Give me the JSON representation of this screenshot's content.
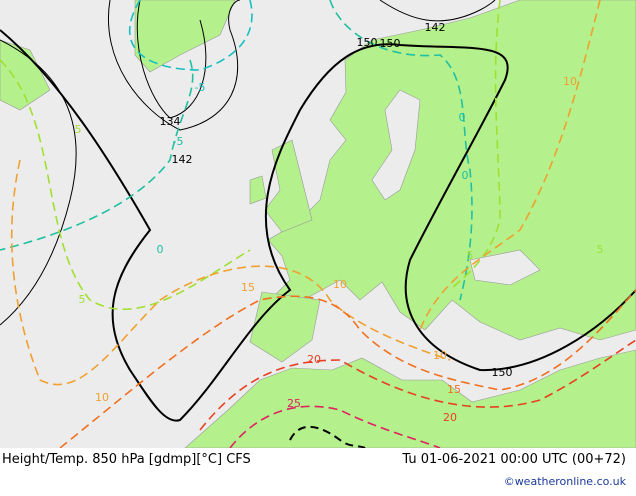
{
  "map": {
    "height_labels": [
      "150",
      "142",
      "134",
      "142",
      "150",
      "150"
    ],
    "temp_labels": [
      "-5",
      "-5",
      "0",
      "0",
      "5",
      "5",
      "0",
      "10",
      "15",
      "10",
      "20",
      "25",
      "15",
      "20",
      "10",
      "5",
      "10",
      "5"
    ],
    "footer": {
      "title": "Height/Temp. 850 hPa [gdmp][°C] CFS",
      "time": "Tu 01-06-2021 00:00 UTC (00+72)",
      "credit": "©weatheronline.co.uk"
    }
  }
}
